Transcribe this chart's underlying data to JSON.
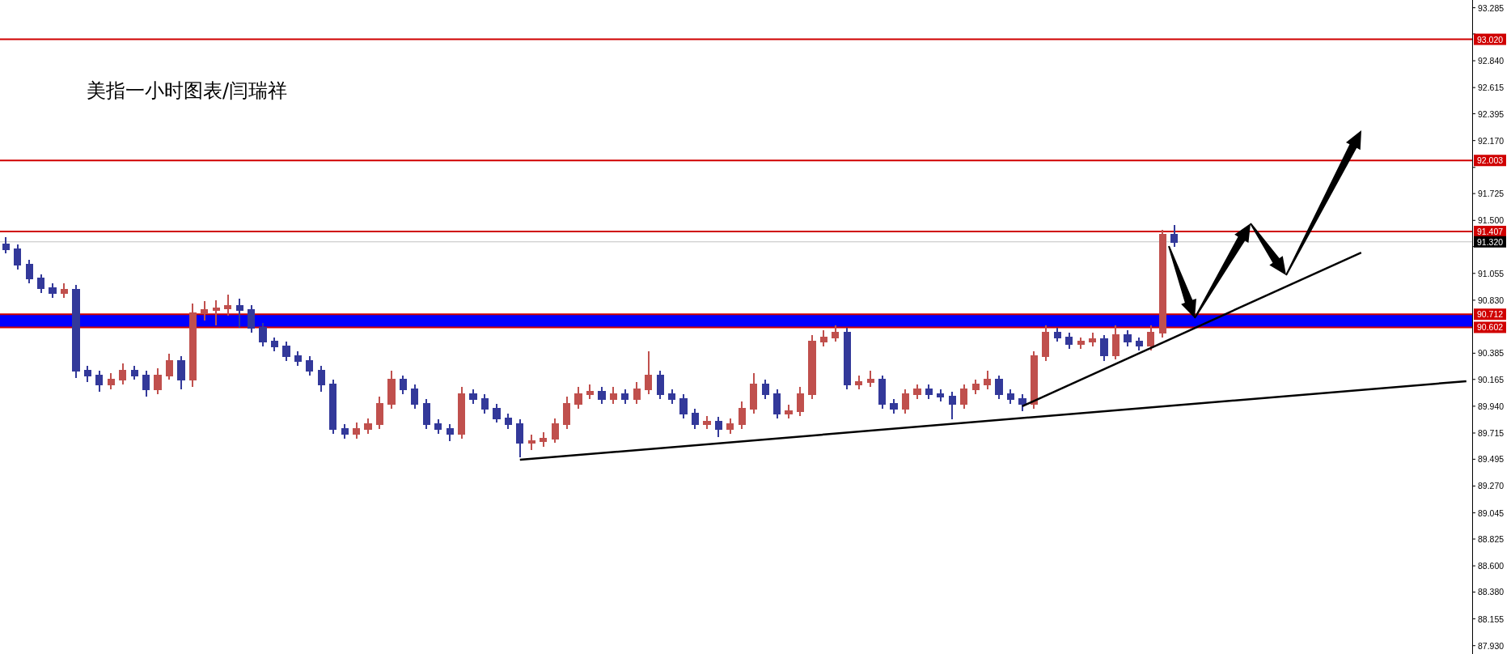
{
  "chart_data": {
    "type": "candlestick",
    "title": "美指一小时图表/闫瑞祥",
    "categories": [
      null,
      null,
      null,
      null,
      null,
      null,
      null,
      null,
      null,
      null,
      null,
      null,
      null,
      null,
      null,
      null,
      null,
      null,
      null,
      null,
      null,
      null,
      null,
      null,
      null,
      null,
      null,
      null,
      null,
      null,
      null,
      null,
      null,
      null,
      null,
      null,
      null,
      null,
      null,
      null,
      null,
      null,
      null,
      null,
      null,
      null,
      null,
      null,
      null,
      null,
      null,
      null,
      null,
      null,
      null,
      null,
      null,
      null,
      null,
      null,
      null,
      null,
      null,
      null,
      null,
      null,
      null,
      null,
      null,
      null,
      null,
      null,
      null,
      null,
      null,
      null,
      null,
      null,
      null,
      null,
      null,
      null,
      null,
      null,
      null,
      null,
      null,
      null,
      null,
      null,
      null,
      null,
      null,
      null,
      null,
      null,
      null,
      null,
      null,
      null,
      null,
      null,
      null,
      null,
      null,
      null,
      null,
      null,
      null,
      null,
      null,
      null,
      null,
      null,
      null,
      null,
      null,
      null,
      null,
      null,
      null,
      null,
      null,
      null,
      null,
      null
    ],
    "ohlc": [
      [
        91.3,
        91.36,
        91.22,
        91.26
      ],
      [
        91.26,
        91.3,
        91.09,
        91.13
      ],
      [
        91.13,
        91.17,
        90.97,
        91.01
      ],
      [
        91.01,
        91.05,
        90.89,
        90.93
      ],
      [
        90.93,
        90.97,
        90.85,
        90.89
      ],
      [
        90.89,
        90.97,
        90.85,
        90.92
      ],
      [
        90.92,
        90.96,
        90.18,
        90.24
      ],
      [
        90.24,
        90.28,
        90.14,
        90.2
      ],
      [
        90.2,
        90.24,
        90.06,
        90.12
      ],
      [
        90.12,
        90.22,
        90.08,
        90.16
      ],
      [
        90.16,
        90.3,
        90.12,
        90.24
      ],
      [
        90.24,
        90.28,
        90.16,
        90.2
      ],
      [
        90.2,
        90.24,
        90.02,
        90.08
      ],
      [
        90.08,
        90.26,
        90.04,
        90.2
      ],
      [
        90.2,
        90.38,
        90.16,
        90.32
      ],
      [
        90.32,
        90.36,
        90.08,
        90.16
      ],
      [
        90.16,
        90.8,
        90.1,
        90.72
      ],
      [
        90.72,
        90.82,
        90.66,
        90.75
      ],
      [
        90.75,
        90.83,
        90.62,
        90.76
      ],
      [
        90.76,
        90.88,
        90.7,
        90.78
      ],
      [
        90.78,
        90.84,
        90.6,
        90.75
      ],
      [
        90.75,
        90.79,
        90.56,
        90.6
      ],
      [
        90.6,
        90.64,
        90.44,
        90.48
      ],
      [
        90.48,
        90.52,
        90.4,
        90.44
      ],
      [
        90.44,
        90.48,
        90.32,
        90.36
      ],
      [
        90.36,
        90.4,
        90.28,
        90.32
      ],
      [
        90.32,
        90.36,
        90.2,
        90.24
      ],
      [
        90.24,
        90.28,
        90.06,
        90.12
      ],
      [
        90.12,
        90.16,
        89.71,
        89.75
      ],
      [
        89.75,
        89.79,
        89.67,
        89.71
      ],
      [
        89.71,
        89.8,
        89.67,
        89.75
      ],
      [
        89.75,
        89.84,
        89.71,
        89.79
      ],
      [
        89.79,
        90.02,
        89.75,
        89.96
      ],
      [
        89.96,
        90.24,
        89.92,
        90.16
      ],
      [
        90.16,
        90.2,
        90.04,
        90.08
      ],
      [
        90.08,
        90.12,
        89.92,
        89.96
      ],
      [
        89.96,
        90.0,
        89.75,
        89.79
      ],
      [
        89.79,
        89.83,
        89.71,
        89.75
      ],
      [
        89.75,
        89.79,
        89.65,
        89.71
      ],
      [
        89.71,
        90.1,
        89.67,
        90.04
      ],
      [
        90.04,
        90.08,
        89.96,
        90.0
      ],
      [
        90.0,
        90.04,
        89.88,
        89.92
      ],
      [
        89.92,
        89.96,
        89.8,
        89.84
      ],
      [
        89.84,
        89.88,
        89.75,
        89.79
      ],
      [
        89.79,
        89.83,
        89.51,
        89.63
      ],
      [
        89.63,
        89.7,
        89.57,
        89.65
      ],
      [
        89.65,
        89.72,
        89.6,
        89.67
      ],
      [
        89.67,
        89.84,
        89.63,
        89.79
      ],
      [
        89.79,
        90.02,
        89.75,
        89.96
      ],
      [
        89.96,
        90.1,
        89.92,
        90.04
      ],
      [
        90.04,
        90.12,
        90.0,
        90.06
      ],
      [
        90.06,
        90.1,
        89.96,
        90.0
      ],
      [
        90.0,
        90.1,
        89.96,
        90.04
      ],
      [
        90.04,
        90.08,
        89.96,
        90.0
      ],
      [
        90.0,
        90.14,
        89.96,
        90.08
      ],
      [
        90.08,
        90.4,
        90.04,
        90.2
      ],
      [
        90.2,
        90.24,
        90.0,
        90.04
      ],
      [
        90.04,
        90.08,
        89.96,
        90.0
      ],
      [
        90.0,
        90.04,
        89.84,
        89.88
      ],
      [
        89.88,
        89.92,
        89.75,
        89.79
      ],
      [
        89.79,
        89.86,
        89.75,
        89.81
      ],
      [
        89.81,
        89.85,
        89.68,
        89.75
      ],
      [
        89.75,
        89.84,
        89.71,
        89.79
      ],
      [
        89.79,
        89.98,
        89.75,
        89.92
      ],
      [
        89.92,
        90.22,
        89.88,
        90.12
      ],
      [
        90.12,
        90.16,
        90.0,
        90.04
      ],
      [
        90.04,
        90.08,
        89.84,
        89.88
      ],
      [
        89.88,
        89.95,
        89.84,
        89.9
      ],
      [
        89.9,
        90.1,
        89.86,
        90.04
      ],
      [
        90.04,
        90.54,
        90.0,
        90.48
      ],
      [
        90.48,
        90.58,
        90.44,
        90.52
      ],
      [
        90.52,
        90.62,
        90.48,
        90.56
      ],
      [
        90.56,
        90.6,
        90.08,
        90.12
      ],
      [
        90.12,
        90.2,
        90.08,
        90.14
      ],
      [
        90.14,
        90.24,
        90.1,
        90.16
      ],
      [
        90.16,
        90.2,
        89.92,
        89.96
      ],
      [
        89.96,
        90.0,
        89.88,
        89.92
      ],
      [
        89.92,
        90.08,
        89.88,
        90.04
      ],
      [
        90.04,
        90.12,
        90.0,
        90.08
      ],
      [
        90.08,
        90.12,
        90.0,
        90.04
      ],
      [
        90.04,
        90.08,
        89.98,
        90.02
      ],
      [
        90.02,
        90.06,
        89.83,
        89.96
      ],
      [
        89.96,
        90.12,
        89.92,
        90.08
      ],
      [
        90.08,
        90.16,
        90.04,
        90.12
      ],
      [
        90.12,
        90.24,
        90.08,
        90.16
      ],
      [
        90.16,
        90.2,
        90.0,
        90.04
      ],
      [
        90.04,
        90.08,
        89.96,
        90.0
      ],
      [
        90.0,
        90.04,
        89.9,
        89.96
      ],
      [
        89.96,
        90.4,
        89.92,
        90.36
      ],
      [
        90.36,
        90.62,
        90.32,
        90.56
      ],
      [
        90.56,
        90.6,
        90.48,
        90.52
      ],
      [
        90.52,
        90.56,
        90.42,
        90.46
      ],
      [
        90.46,
        90.52,
        90.42,
        90.48
      ],
      [
        90.48,
        90.56,
        90.44,
        90.5
      ],
      [
        90.5,
        90.54,
        90.32,
        90.37
      ],
      [
        90.37,
        90.62,
        90.33,
        90.54
      ],
      [
        90.54,
        90.58,
        90.44,
        90.48
      ],
      [
        90.48,
        90.52,
        90.41,
        90.45
      ],
      [
        90.45,
        90.62,
        90.41,
        90.56
      ],
      [
        90.56,
        91.42,
        90.52,
        91.38
      ],
      [
        91.38,
        91.46,
        91.28,
        91.32
      ],
      null,
      null,
      null,
      null,
      null,
      null,
      null,
      null,
      null,
      null,
      null,
      null,
      null,
      null,
      null,
      null,
      null,
      null,
      null,
      null,
      null,
      null,
      null,
      null,
      null
    ],
    "colors": [
      "#33399a",
      "#33399a",
      "#33399a",
      "#33399a",
      "#33399a",
      "#c0504d",
      "#33399a",
      "#33399a",
      "#33399a",
      "#c0504d",
      "#c0504d",
      "#33399a",
      "#33399a",
      "#c0504d",
      "#c0504d",
      "#33399a",
      "#c0504d",
      "#c0504d",
      "#c0504d",
      "#c0504d",
      "#33399a",
      "#33399a",
      "#33399a",
      "#33399a",
      "#33399a",
      "#33399a",
      "#33399a",
      "#33399a",
      "#33399a",
      "#33399a",
      "#c0504d",
      "#c0504d",
      "#c0504d",
      "#c0504d",
      "#33399a",
      "#33399a",
      "#33399a",
      "#33399a",
      "#33399a",
      "#c0504d",
      "#33399a",
      "#33399a",
      "#33399a",
      "#33399a",
      "#33399a",
      "#c0504d",
      "#c0504d",
      "#c0504d",
      "#c0504d",
      "#c0504d",
      "#c0504d",
      "#33399a",
      "#c0504d",
      "#33399a",
      "#c0504d",
      "#c0504d",
      "#33399a",
      "#33399a",
      "#33399a",
      "#33399a",
      "#c0504d",
      "#33399a",
      "#c0504d",
      "#c0504d",
      "#c0504d",
      "#33399a",
      "#33399a",
      "#c0504d",
      "#c0504d",
      "#c0504d",
      "#c0504d",
      "#c0504d",
      "#33399a",
      "#c0504d",
      "#c0504d",
      "#33399a",
      "#33399a",
      "#c0504d",
      "#c0504d",
      "#33399a",
      "#33399a",
      "#33399a",
      "#c0504d",
      "#c0504d",
      "#c0504d",
      "#33399a",
      "#33399a",
      "#33399a",
      "#c0504d",
      "#c0504d",
      "#33399a",
      "#33399a",
      "#c0504d",
      "#c0504d",
      "#33399a",
      "#c0504d",
      "#33399a",
      "#33399a",
      "#c0504d",
      "#c0504d",
      "#33399a",
      null,
      null,
      null,
      null,
      null,
      null,
      null,
      null,
      null,
      null,
      null,
      null,
      null,
      null,
      null,
      null,
      null,
      null,
      null,
      null,
      null,
      null,
      null,
      null,
      null
    ],
    "series": [
      {
        "type": "line",
        "color": "#000000",
        "values": [
          null,
          null,
          null,
          null,
          null,
          null,
          null,
          null,
          null,
          null,
          null,
          null,
          null,
          null,
          null,
          null,
          null,
          null,
          null,
          null,
          null,
          null,
          null,
          null,
          null,
          null,
          null,
          null,
          null,
          null,
          null,
          null,
          null,
          null,
          null,
          null,
          null,
          null,
          null,
          null,
          null,
          null,
          null,
          null,
          89.49,
          null,
          null,
          null,
          null,
          null,
          null,
          null,
          null,
          null,
          null,
          null,
          null,
          null,
          null,
          null,
          null,
          null,
          null,
          null,
          null,
          null,
          null,
          null,
          null,
          null,
          null,
          null,
          null,
          null,
          null,
          null,
          null,
          null,
          null,
          null,
          null,
          null,
          null,
          null,
          null,
          null,
          null,
          null,
          null,
          null,
          null,
          null,
          null,
          null,
          null,
          null,
          null,
          null,
          null,
          null,
          null,
          null,
          null,
          null,
          null,
          null,
          null,
          null,
          null,
          null,
          null,
          null,
          null,
          null,
          null,
          null,
          null,
          null,
          null,
          null,
          null,
          null,
          null,
          null,
          null,
          90.15
        ]
      },
      {
        "type": "line",
        "color": "#000000",
        "values": [
          null,
          null,
          null,
          null,
          null,
          null,
          null,
          null,
          null,
          null,
          null,
          null,
          null,
          null,
          null,
          null,
          null,
          null,
          null,
          null,
          null,
          null,
          null,
          null,
          null,
          null,
          null,
          null,
          null,
          null,
          null,
          null,
          null,
          null,
          null,
          null,
          null,
          null,
          null,
          null,
          null,
          null,
          null,
          null,
          null,
          null,
          null,
          null,
          null,
          null,
          null,
          null,
          null,
          null,
          null,
          null,
          null,
          null,
          null,
          null,
          null,
          null,
          null,
          null,
          null,
          null,
          null,
          null,
          null,
          null,
          null,
          null,
          null,
          null,
          null,
          null,
          null,
          null,
          null,
          null,
          null,
          null,
          null,
          null,
          null,
          null,
          null,
          89.94,
          null,
          null,
          null,
          null,
          null,
          null,
          null,
          null,
          null,
          null,
          null,
          null,
          null,
          null,
          null,
          null,
          null,
          null,
          null,
          null,
          null,
          null,
          null,
          null,
          null,
          null,
          null,
          null,
          91.23,
          null,
          null,
          null,
          null,
          null,
          null,
          null,
          null,
          null
        ]
      }
    ],
    "ylim": [
      87.86,
      93.35
    ],
    "yticks": [
      {
        "value": 93.285,
        "label": "93.285"
      },
      {
        "value": 93.065,
        "label": null
      },
      {
        "value": 92.84,
        "label": "92.840"
      },
      {
        "value": 92.615,
        "label": "92.615"
      },
      {
        "value": 92.395,
        "label": "92.395"
      },
      {
        "value": 92.17,
        "label": "92.170"
      },
      {
        "value": 91.945,
        "label": null
      },
      {
        "value": 91.725,
        "label": "91.725"
      },
      {
        "value": 91.5,
        "label": "91.500"
      },
      {
        "value": 91.28,
        "label": null
      },
      {
        "value": 91.055,
        "label": "91.055"
      },
      {
        "value": 90.83,
        "label": "90.830"
      },
      {
        "value": 90.385,
        "label": "90.385"
      },
      {
        "value": 90.165,
        "label": "90.165"
      },
      {
        "value": 89.94,
        "label": "89.940"
      },
      {
        "value": 89.715,
        "label": "89.715"
      },
      {
        "value": 89.495,
        "label": "89.495"
      },
      {
        "value": 89.27,
        "label": "89.270"
      },
      {
        "value": 89.045,
        "label": "89.045"
      },
      {
        "value": 88.825,
        "label": "88.825"
      },
      {
        "value": 88.6,
        "label": "88.600"
      },
      {
        "value": 88.38,
        "label": "88.380"
      },
      {
        "value": 88.155,
        "label": "88.155"
      },
      {
        "value": 87.93,
        "label": "87.930"
      }
    ],
    "ref_lines": [
      {
        "axis": "y",
        "value": 93.02,
        "label": "93.020",
        "color": "#d00000"
      },
      {
        "axis": "y",
        "value": 92.003,
        "label": "92.003",
        "color": "#d00000"
      },
      {
        "axis": "y",
        "value": 91.407,
        "label": "91.407",
        "color": "#d00000"
      },
      {
        "axis": "y",
        "value": 91.32,
        "label": "91.320",
        "color": "#c0c0c0"
      },
      {
        "axis": "y",
        "value": 90.712,
        "label": "90.712",
        "color": "#d00000"
      },
      {
        "axis": "y",
        "value": 90.602,
        "label": "90.602",
        "color": "#d00000"
      }
    ],
    "bands": [
      {
        "axis": "y",
        "from": 90.602,
        "to": 90.712,
        "color": "#0000ff"
      }
    ],
    "tick_labels": "y"
  }
}
